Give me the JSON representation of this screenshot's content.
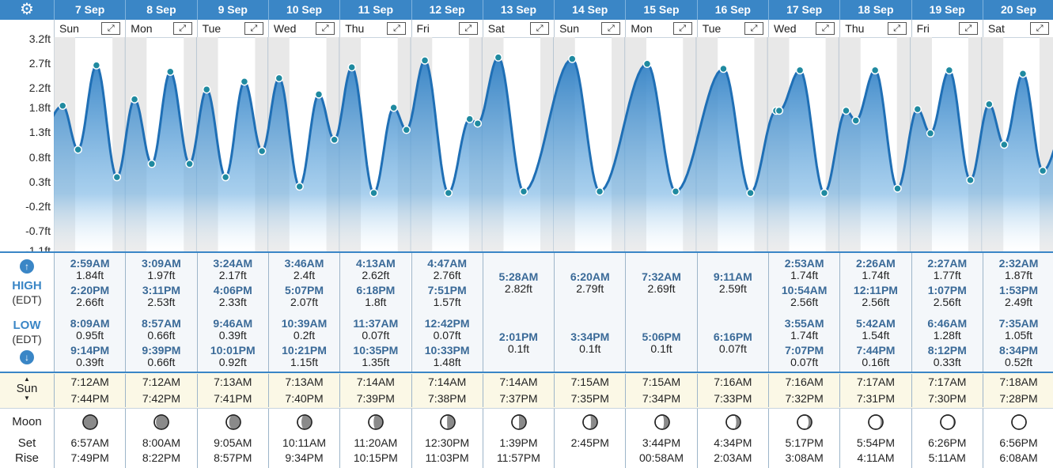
{
  "colors": {
    "brand": "#3a86c6",
    "fill": "#2f7fc4",
    "point": "#1f8aa0",
    "weekend": "#e8e8e8"
  },
  "header": {
    "settings_icon": "gear-icon",
    "days": [
      {
        "date": "7 Sep",
        "dow": "Sun"
      },
      {
        "date": "8 Sep",
        "dow": "Mon"
      },
      {
        "date": "9 Sep",
        "dow": "Tue"
      },
      {
        "date": "10 Sep",
        "dow": "Wed"
      },
      {
        "date": "11 Sep",
        "dow": "Thu"
      },
      {
        "date": "12 Sep",
        "dow": "Fri"
      },
      {
        "date": "13 Sep",
        "dow": "Sat"
      },
      {
        "date": "14 Sep",
        "dow": "Sun"
      },
      {
        "date": "15 Sep",
        "dow": "Mon"
      },
      {
        "date": "16 Sep",
        "dow": "Tue"
      },
      {
        "date": "17 Sep",
        "dow": "Wed"
      },
      {
        "date": "18 Sep",
        "dow": "Thu"
      },
      {
        "date": "19 Sep",
        "dow": "Fri"
      },
      {
        "date": "20 Sep",
        "dow": "Sat"
      }
    ],
    "expand_icon": "expand-icon",
    "expand_glyph": "⤢"
  },
  "chart_data": {
    "type": "area",
    "ylabel_ticks": [
      "3.2ft",
      "2.7ft",
      "2.2ft",
      "1.8ft",
      "1.3ft",
      "0.8ft",
      "0.3ft",
      "-0.2ft",
      "-0.7ft",
      "-1.1ft"
    ],
    "ylim": [
      -1.1,
      3.2
    ],
    "x_unit": "day index from 7 Sep 00:00",
    "extremes": [
      {
        "day": 0,
        "time": "2:59AM",
        "h": 1.84
      },
      {
        "day": 0,
        "time": "8:09AM",
        "h": 0.95
      },
      {
        "day": 0,
        "time": "2:20PM",
        "h": 2.66
      },
      {
        "day": 0,
        "time": "9:14PM",
        "h": 0.39
      },
      {
        "day": 1,
        "time": "3:09AM",
        "h": 1.97
      },
      {
        "day": 1,
        "time": "8:57AM",
        "h": 0.66
      },
      {
        "day": 1,
        "time": "3:11PM",
        "h": 2.53
      },
      {
        "day": 1,
        "time": "9:39PM",
        "h": 0.66
      },
      {
        "day": 2,
        "time": "3:24AM",
        "h": 2.17
      },
      {
        "day": 2,
        "time": "9:46AM",
        "h": 0.39
      },
      {
        "day": 2,
        "time": "4:06PM",
        "h": 2.33
      },
      {
        "day": 2,
        "time": "10:01PM",
        "h": 0.92
      },
      {
        "day": 3,
        "time": "3:46AM",
        "h": 2.4
      },
      {
        "day": 3,
        "time": "10:39AM",
        "h": 0.2
      },
      {
        "day": 3,
        "time": "5:07PM",
        "h": 2.07
      },
      {
        "day": 3,
        "time": "10:21PM",
        "h": 1.15
      },
      {
        "day": 4,
        "time": "4:13AM",
        "h": 2.62
      },
      {
        "day": 4,
        "time": "11:37AM",
        "h": 0.07
      },
      {
        "day": 4,
        "time": "6:18PM",
        "h": 1.8
      },
      {
        "day": 4,
        "time": "10:35PM",
        "h": 1.35
      },
      {
        "day": 5,
        "time": "4:47AM",
        "h": 2.76
      },
      {
        "day": 5,
        "time": "12:42PM",
        "h": 0.07
      },
      {
        "day": 5,
        "time": "7:51PM",
        "h": 1.57
      },
      {
        "day": 5,
        "time": "10:33PM",
        "h": 1.48
      },
      {
        "day": 6,
        "time": "5:28AM",
        "h": 2.82
      },
      {
        "day": 6,
        "time": "2:01PM",
        "h": 0.1
      },
      {
        "day": 7,
        "time": "6:20AM",
        "h": 2.79
      },
      {
        "day": 7,
        "time": "3:34PM",
        "h": 0.1
      },
      {
        "day": 8,
        "time": "7:32AM",
        "h": 2.69
      },
      {
        "day": 8,
        "time": "5:06PM",
        "h": 0.1
      },
      {
        "day": 9,
        "time": "9:11AM",
        "h": 2.59
      },
      {
        "day": 9,
        "time": "6:16PM",
        "h": 0.07
      },
      {
        "day": 10,
        "time": "2:53AM",
        "h": 1.74
      },
      {
        "day": 10,
        "time": "3:55AM",
        "h": 1.74
      },
      {
        "day": 10,
        "time": "10:54AM",
        "h": 2.56
      },
      {
        "day": 10,
        "time": "7:07PM",
        "h": 0.07
      },
      {
        "day": 11,
        "time": "2:26AM",
        "h": 1.74
      },
      {
        "day": 11,
        "time": "5:42AM",
        "h": 1.54
      },
      {
        "day": 11,
        "time": "12:11PM",
        "h": 2.56
      },
      {
        "day": 11,
        "time": "7:44PM",
        "h": 0.16
      },
      {
        "day": 12,
        "time": "2:27AM",
        "h": 1.77
      },
      {
        "day": 12,
        "time": "6:46AM",
        "h": 1.28
      },
      {
        "day": 12,
        "time": "1:07PM",
        "h": 2.56
      },
      {
        "day": 12,
        "time": "8:12PM",
        "h": 0.33
      },
      {
        "day": 13,
        "time": "2:32AM",
        "h": 1.87
      },
      {
        "day": 13,
        "time": "7:35AM",
        "h": 1.05
      },
      {
        "day": 13,
        "time": "1:53PM",
        "h": 2.49
      },
      {
        "day": 13,
        "time": "8:34PM",
        "h": 0.52
      }
    ]
  },
  "tides": {
    "high_label": "HIGH",
    "low_label": "LOW",
    "tz_label": "(EDT)",
    "up_icon": "arrow-up-icon",
    "down_icon": "arrow-down-icon",
    "up_glyph": "↑",
    "down_glyph": "↓",
    "high": [
      [
        {
          "t": "2:59AM",
          "v": "1.84ft"
        },
        {
          "t": "2:20PM",
          "v": "2.66ft"
        }
      ],
      [
        {
          "t": "3:09AM",
          "v": "1.97ft"
        },
        {
          "t": "3:11PM",
          "v": "2.53ft"
        }
      ],
      [
        {
          "t": "3:24AM",
          "v": "2.17ft"
        },
        {
          "t": "4:06PM",
          "v": "2.33ft"
        }
      ],
      [
        {
          "t": "3:46AM",
          "v": "2.4ft"
        },
        {
          "t": "5:07PM",
          "v": "2.07ft"
        }
      ],
      [
        {
          "t": "4:13AM",
          "v": "2.62ft"
        },
        {
          "t": "6:18PM",
          "v": "1.8ft"
        }
      ],
      [
        {
          "t": "4:47AM",
          "v": "2.76ft"
        },
        {
          "t": "7:51PM",
          "v": "1.57ft"
        }
      ],
      [
        {
          "t": "5:28AM",
          "v": "2.82ft"
        }
      ],
      [
        {
          "t": "6:20AM",
          "v": "2.79ft"
        }
      ],
      [
        {
          "t": "7:32AM",
          "v": "2.69ft"
        }
      ],
      [
        {
          "t": "9:11AM",
          "v": "2.59ft"
        }
      ],
      [
        {
          "t": "2:53AM",
          "v": "1.74ft"
        },
        {
          "t": "10:54AM",
          "v": "2.56ft"
        }
      ],
      [
        {
          "t": "2:26AM",
          "v": "1.74ft"
        },
        {
          "t": "12:11PM",
          "v": "2.56ft"
        }
      ],
      [
        {
          "t": "2:27AM",
          "v": "1.77ft"
        },
        {
          "t": "1:07PM",
          "v": "2.56ft"
        }
      ],
      [
        {
          "t": "2:32AM",
          "v": "1.87ft"
        },
        {
          "t": "1:53PM",
          "v": "2.49ft"
        }
      ]
    ],
    "low": [
      [
        {
          "t": "8:09AM",
          "v": "0.95ft"
        },
        {
          "t": "9:14PM",
          "v": "0.39ft"
        }
      ],
      [
        {
          "t": "8:57AM",
          "v": "0.66ft"
        },
        {
          "t": "9:39PM",
          "v": "0.66ft"
        }
      ],
      [
        {
          "t": "9:46AM",
          "v": "0.39ft"
        },
        {
          "t": "10:01PM",
          "v": "0.92ft"
        }
      ],
      [
        {
          "t": "10:39AM",
          "v": "0.2ft"
        },
        {
          "t": "10:21PM",
          "v": "1.15ft"
        }
      ],
      [
        {
          "t": "11:37AM",
          "v": "0.07ft"
        },
        {
          "t": "10:35PM",
          "v": "1.35ft"
        }
      ],
      [
        {
          "t": "12:42PM",
          "v": "0.07ft"
        },
        {
          "t": "10:33PM",
          "v": "1.48ft"
        }
      ],
      [
        {
          "t": "2:01PM",
          "v": "0.1ft"
        }
      ],
      [
        {
          "t": "3:34PM",
          "v": "0.1ft"
        }
      ],
      [
        {
          "t": "5:06PM",
          "v": "0.1ft"
        }
      ],
      [
        {
          "t": "6:16PM",
          "v": "0.07ft"
        }
      ],
      [
        {
          "t": "3:55AM",
          "v": "1.74ft"
        },
        {
          "t": "7:07PM",
          "v": "0.07ft"
        }
      ],
      [
        {
          "t": "5:42AM",
          "v": "1.54ft"
        },
        {
          "t": "7:44PM",
          "v": "0.16ft"
        }
      ],
      [
        {
          "t": "6:46AM",
          "v": "1.28ft"
        },
        {
          "t": "8:12PM",
          "v": "0.33ft"
        }
      ],
      [
        {
          "t": "7:35AM",
          "v": "1.05ft"
        },
        {
          "t": "8:34PM",
          "v": "0.52ft"
        }
      ]
    ]
  },
  "sun": {
    "label": "Sun",
    "up_glyph": "▲",
    "down_glyph": "▼",
    "rise": [
      "7:12AM",
      "7:12AM",
      "7:13AM",
      "7:13AM",
      "7:14AM",
      "7:14AM",
      "7:14AM",
      "7:15AM",
      "7:15AM",
      "7:16AM",
      "7:16AM",
      "7:17AM",
      "7:17AM",
      "7:18AM"
    ],
    "set": [
      "7:44PM",
      "7:42PM",
      "7:41PM",
      "7:40PM",
      "7:39PM",
      "7:38PM",
      "7:37PM",
      "7:35PM",
      "7:34PM",
      "7:33PM",
      "7:32PM",
      "7:31PM",
      "7:30PM",
      "7:28PM"
    ]
  },
  "moon": {
    "label": "Moon",
    "set_label": "Set",
    "rise_label": "Rise",
    "phase": [
      0.05,
      0.12,
      0.2,
      0.28,
      0.35,
      0.45,
      0.5,
      0.55,
      0.62,
      0.7,
      0.78,
      0.85,
      0.9,
      0.96
    ],
    "set": [
      "6:57AM",
      "8:00AM",
      "9:05AM",
      "10:11AM",
      "11:20AM",
      "12:30PM",
      "1:39PM",
      "2:45PM",
      "3:44PM",
      "4:34PM",
      "5:17PM",
      "5:54PM",
      "6:26PM",
      "6:56PM"
    ],
    "rise": [
      "7:49PM",
      "8:22PM",
      "8:57PM",
      "9:34PM",
      "10:15PM",
      "11:03PM",
      "11:57PM",
      "",
      "00:58AM",
      "2:03AM",
      "3:08AM",
      "4:11AM",
      "5:11AM",
      "6:08AM"
    ]
  }
}
